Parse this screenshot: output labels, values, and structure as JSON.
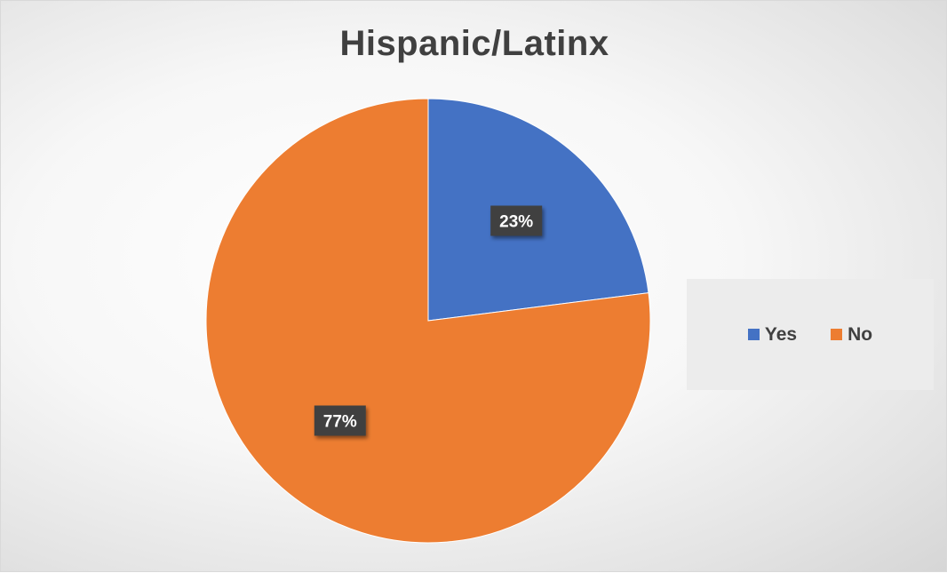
{
  "colors": {
    "yes": "#4472C4",
    "no": "#ED7D31",
    "label_bg": "#404040"
  },
  "chart_data": {
    "type": "pie",
    "title": "Hispanic/Latinx",
    "categories": [
      "Yes",
      "No"
    ],
    "values": [
      23,
      77
    ],
    "data_labels": [
      "23%",
      "77%"
    ],
    "colors": [
      "#4472C4",
      "#ED7D31"
    ],
    "start_angle_deg": 0,
    "direction": "clockwise",
    "legend_position": "right"
  }
}
